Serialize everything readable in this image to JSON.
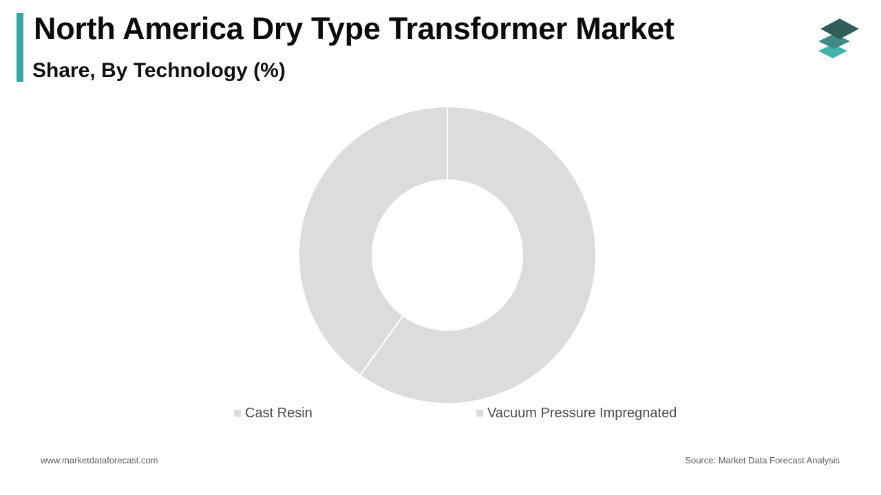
{
  "header": {
    "title": "North America Dry Type Transformer Market",
    "subtitle": "Share, By Technology (%)"
  },
  "colors": {
    "accent": "#3aa6a4",
    "slice": "#dcdcdc",
    "slice_separator": "#ffffff",
    "logo_top": "#2f5e58",
    "logo_middle": "#3f8a82",
    "logo_bottom": "#44b3ac"
  },
  "logo": {
    "icon": "stacked-layers-logo-icon"
  },
  "chart_data": {
    "type": "pie",
    "style": "donut",
    "labels": [
      "Vacuum Pressure Impregnated",
      "Cast Resin"
    ],
    "values": [
      60,
      40
    ],
    "legend_order": [
      "Cast Resin",
      "Vacuum Pressure Impregnated"
    ],
    "legend_position": "bottom",
    "data_labels": false
  },
  "footer": {
    "website": "www.marketdataforecast.com",
    "source": "Source: Market Data Forecast Analysis"
  }
}
